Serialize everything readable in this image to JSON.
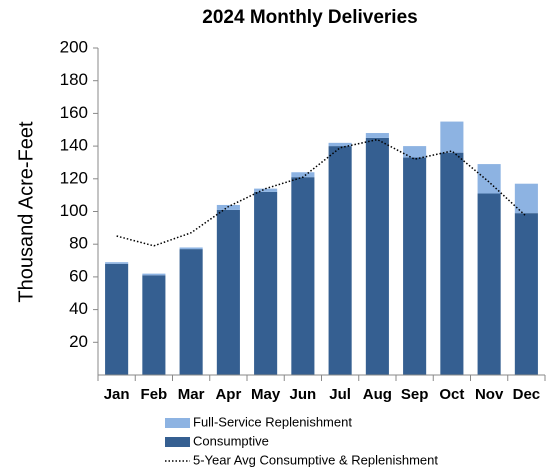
{
  "chart_data": {
    "type": "bar",
    "stacked": true,
    "title": "2024 Monthly Deliveries",
    "y_label": "Thousand Acre-Feet",
    "categories": [
      "Jan",
      "Feb",
      "Mar",
      "Apr",
      "May",
      "Jun",
      "Jul",
      "Aug",
      "Sep",
      "Oct",
      "Nov",
      "Dec"
    ],
    "series": [
      {
        "name": "Full-Service Replenishment",
        "color": "#8db3e2",
        "type": "bar",
        "values": [
          1,
          1,
          1,
          3,
          2,
          3,
          2,
          3,
          7,
          19,
          18,
          18
        ]
      },
      {
        "name": "Consumptive",
        "color": "#355f91",
        "type": "bar",
        "values": [
          68,
          61,
          77,
          101,
          112,
          121,
          140,
          145,
          133,
          136,
          111,
          99
        ]
      },
      {
        "name": "5-Year Avg Consumptive & Replenishment",
        "color": "#000000",
        "type": "line",
        "line_style": "dotted",
        "values": [
          85,
          79,
          87,
          103,
          114,
          121,
          139,
          144,
          132,
          137,
          118,
          97
        ]
      }
    ],
    "stack_order": [
      1,
      0
    ],
    "ylim": [
      0,
      200
    ],
    "yticks": [
      20,
      40,
      60,
      80,
      100,
      120,
      140,
      160,
      180,
      200
    ],
    "grid": false
  }
}
